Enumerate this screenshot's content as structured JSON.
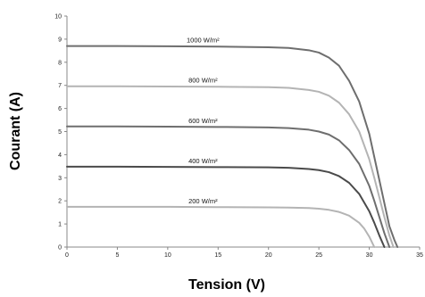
{
  "chart_data": {
    "type": "line",
    "title": "",
    "xlabel": "Tension (V)",
    "ylabel": "Courant (A)",
    "xlim": [
      0,
      35
    ],
    "ylim": [
      0,
      10
    ],
    "xticks": [
      0,
      5,
      10,
      15,
      20,
      25,
      30,
      35
    ],
    "yticks": [
      0,
      1,
      2,
      3,
      4,
      5,
      6,
      7,
      8,
      9,
      10
    ],
    "grid": false,
    "legend": "none",
    "series": [
      {
        "name": "1000 W/m²",
        "color": "#6e6e6e",
        "x": [
          0,
          5,
          10,
          15,
          20,
          22,
          24,
          25,
          26,
          27,
          28,
          29,
          30,
          30.5,
          31,
          31.5,
          32,
          32.5,
          32.8
        ],
        "y": [
          8.7,
          8.7,
          8.69,
          8.68,
          8.65,
          8.62,
          8.52,
          8.42,
          8.2,
          7.85,
          7.2,
          6.3,
          4.9,
          3.9,
          2.9,
          1.9,
          0.9,
          0.3,
          0
        ]
      },
      {
        "name": "800 W/m²",
        "color": "#b4b4b4",
        "x": [
          0,
          5,
          10,
          15,
          20,
          22,
          24,
          25,
          26,
          27,
          28,
          29,
          30,
          30.5,
          31,
          31.5,
          32,
          32.4
        ],
        "y": [
          6.96,
          6.96,
          6.95,
          6.94,
          6.92,
          6.89,
          6.8,
          6.72,
          6.55,
          6.25,
          5.75,
          5.0,
          3.8,
          3.0,
          2.15,
          1.3,
          0.5,
          0
        ]
      },
      {
        "name": "600 W/m²",
        "color": "#6e6e6e",
        "x": [
          0,
          5,
          10,
          15,
          20,
          22,
          24,
          25,
          26,
          27,
          28,
          29,
          30,
          30.5,
          31,
          31.5,
          32
        ],
        "y": [
          5.22,
          5.22,
          5.21,
          5.2,
          5.18,
          5.15,
          5.08,
          5.0,
          4.87,
          4.62,
          4.2,
          3.6,
          2.65,
          2.0,
          1.3,
          0.6,
          0
        ]
      },
      {
        "name": "400 W/m²",
        "color": "#4a4a4a",
        "x": [
          0,
          5,
          10,
          15,
          20,
          22,
          24,
          25,
          26,
          27,
          28,
          29,
          30,
          30.5,
          31,
          31.5
        ],
        "y": [
          3.48,
          3.48,
          3.47,
          3.46,
          3.45,
          3.43,
          3.38,
          3.33,
          3.24,
          3.07,
          2.78,
          2.3,
          1.55,
          1.05,
          0.5,
          0
        ]
      },
      {
        "name": "200 W/m²",
        "color": "#b4b4b4",
        "x": [
          0,
          5,
          10,
          15,
          20,
          22,
          24,
          25,
          26,
          27,
          28,
          29,
          29.5,
          30,
          30.5
        ],
        "y": [
          1.74,
          1.74,
          1.74,
          1.73,
          1.72,
          1.71,
          1.69,
          1.66,
          1.61,
          1.52,
          1.36,
          1.05,
          0.8,
          0.45,
          0
        ]
      }
    ]
  }
}
